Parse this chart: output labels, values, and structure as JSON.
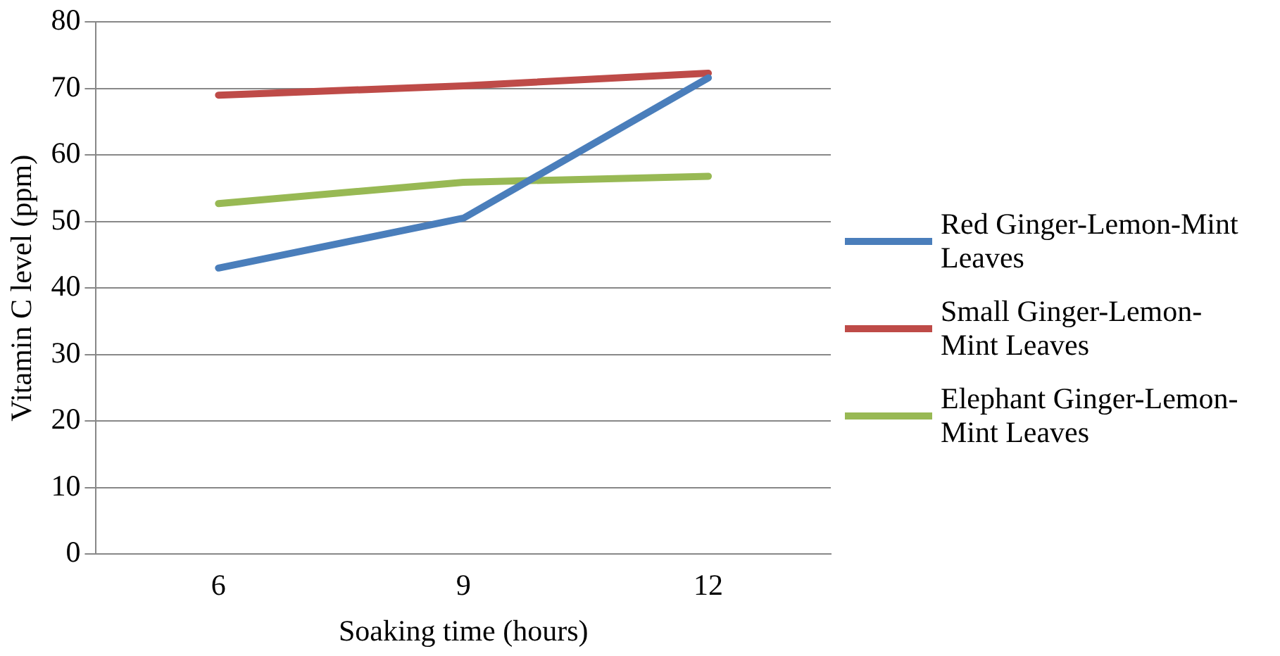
{
  "chart_data": {
    "type": "line",
    "xlabel": "Soaking time (hours)",
    "ylabel": "Vitamin C level (ppm)",
    "categories": [
      "6",
      "9",
      "12"
    ],
    "series": [
      {
        "name": "Red Ginger-Lemon-Mint Leaves",
        "color": "#4a7ebb",
        "values": [
          43,
          50.5,
          71.6
        ]
      },
      {
        "name": "Small Ginger-Lemon-Mint Leaves",
        "color": "#be4b48",
        "values": [
          69,
          70.4,
          72.3
        ]
      },
      {
        "name": "Elephant Ginger-Lemon-Mint Leaves",
        "color": "#98b954",
        "values": [
          52.7,
          55.9,
          56.8
        ]
      }
    ],
    "ylim": [
      0,
      80
    ],
    "yticks": [
      0,
      10,
      20,
      30,
      40,
      50,
      60,
      70,
      80
    ],
    "grid": "y",
    "legend": "right",
    "marker": "none",
    "line_style": "solid"
  }
}
